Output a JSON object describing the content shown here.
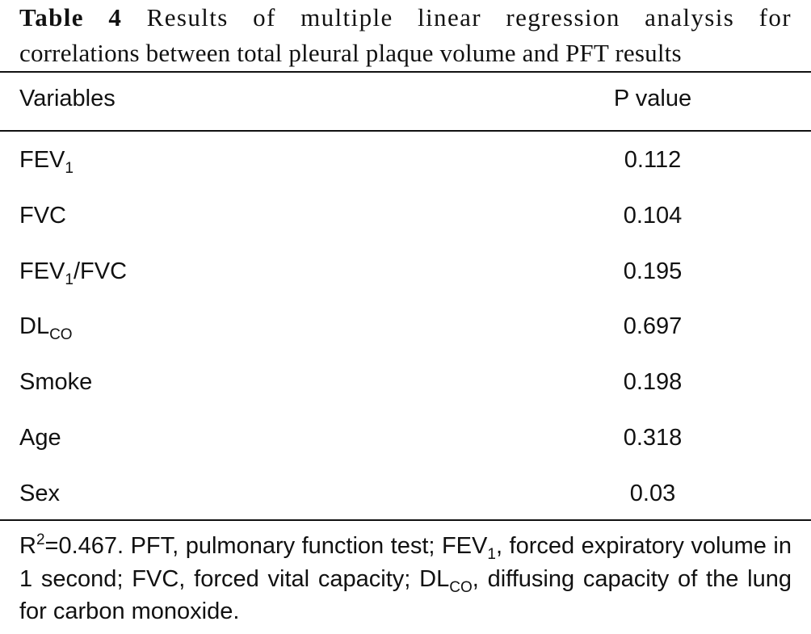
{
  "caption": {
    "label": "Table 4",
    "line1": "Results of multiple linear regression analysis for",
    "line2": "correlations between total pleural plaque volume and PFT results"
  },
  "table": {
    "headers": {
      "variables": "Variables",
      "p_value": "P value"
    },
    "rows": [
      {
        "base": "FEV",
        "sub": "1",
        "tail": "",
        "p": "0.112"
      },
      {
        "base": "FVC",
        "sub": "",
        "tail": "",
        "p": "0.104"
      },
      {
        "base": "FEV",
        "sub": "1",
        "tail": "/FVC",
        "p": "0.195"
      },
      {
        "base": "DL",
        "sub": "CO",
        "tail": "",
        "p": "0.697"
      },
      {
        "base": "Smoke",
        "sub": "",
        "tail": "",
        "p": "0.198"
      },
      {
        "base": "Age",
        "sub": "",
        "tail": "",
        "p": "0.318"
      },
      {
        "base": "Sex",
        "sub": "",
        "tail": "",
        "p": "0.03"
      }
    ]
  },
  "footnote": {
    "r": "R",
    "r_sup": "2",
    "part1": "=0.467. PFT, pulmonary function test; FEV",
    "fev_sub": "1",
    "part2": ", forced expiratory volume in 1 second; FVC, forced vital capacity; DL",
    "dlco_sub": "CO",
    "part3": ", diffusing capacity of the lung for carbon monoxide."
  }
}
